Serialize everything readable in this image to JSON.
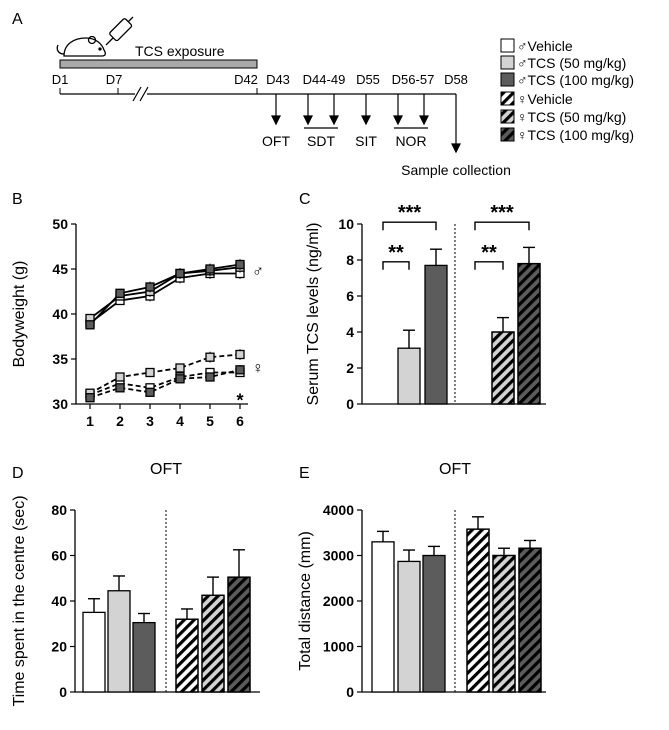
{
  "panel_labels": {
    "a": "A",
    "b": "B",
    "c": "C",
    "d": "D",
    "e": "E"
  },
  "timeline": {
    "exposure_label": "TCS exposure",
    "days": [
      "D1",
      "D7",
      "D42",
      "D43",
      "D44-49",
      "D55",
      "D56-57",
      "D58"
    ],
    "tests": [
      "OFT",
      "SDT",
      "SIT",
      "NOR"
    ],
    "sample": "Sample collection"
  },
  "legend": [
    {
      "label": "♂Vehicle",
      "style": "white"
    },
    {
      "label": "♂TCS (50 mg/kg)",
      "style": "light"
    },
    {
      "label": "♂TCS (100 mg/kg)",
      "style": "dark"
    },
    {
      "label": "♀Vehicle",
      "style": "white-hatch"
    },
    {
      "label": "♀TCS (50 mg/kg)",
      "style": "light-hatch"
    },
    {
      "label": "♀TCS (100 mg/kg)",
      "style": "dark-hatch"
    }
  ],
  "colors": {
    "white": "#ffffff",
    "light": "#d3d3d3",
    "dark": "#5c5c5c",
    "stroke": "#000000",
    "timeline_bar": "#a9a9a9"
  },
  "chart_data": [
    {
      "panel": "B",
      "type": "line",
      "ylabel": "Bodyweight (g)",
      "xlabel": "",
      "x": [
        1,
        2,
        3,
        4,
        5,
        6
      ],
      "ylim": [
        30,
        50
      ],
      "yticks": [
        30,
        35,
        40,
        45,
        50
      ],
      "series": [
        {
          "group": "male",
          "style": "white",
          "values": [
            39.0,
            41.5,
            42.0,
            44.0,
            44.5,
            44.5
          ],
          "err": [
            0.5,
            0.5,
            0.6,
            0.6,
            0.6,
            0.6
          ]
        },
        {
          "group": "male",
          "style": "light",
          "values": [
            39.5,
            42.0,
            42.5,
            44.5,
            44.8,
            45.2
          ],
          "err": [
            0.5,
            0.5,
            0.6,
            0.6,
            0.6,
            0.6
          ]
        },
        {
          "group": "male",
          "style": "dark",
          "values": [
            38.8,
            42.3,
            43.0,
            44.5,
            45.0,
            45.5
          ],
          "err": [
            0.5,
            0.5,
            0.6,
            0.6,
            0.6,
            0.6
          ]
        },
        {
          "group": "female",
          "style": "white",
          "values": [
            31.0,
            32.3,
            31.8,
            33.0,
            33.5,
            33.5
          ],
          "err": [
            0.4,
            0.4,
            0.4,
            0.5,
            0.5,
            0.5
          ]
        },
        {
          "group": "female",
          "style": "light",
          "values": [
            31.2,
            33.0,
            33.5,
            34.0,
            35.2,
            35.5
          ],
          "err": [
            0.4,
            0.4,
            0.4,
            0.5,
            0.6,
            0.6
          ]
        },
        {
          "group": "female",
          "style": "dark",
          "values": [
            30.7,
            31.8,
            31.3,
            32.8,
            33.0,
            33.8
          ],
          "err": [
            0.4,
            0.4,
            0.4,
            0.5,
            0.5,
            0.5
          ]
        }
      ],
      "annotations": [
        {
          "text": "♂",
          "x": 6,
          "y": 44.8
        },
        {
          "text": "♀",
          "x": 6,
          "y": 34.0
        },
        {
          "text": "*",
          "x": 6,
          "y": 31.3
        }
      ]
    },
    {
      "panel": "C",
      "type": "bar",
      "ylabel": "Serum TCS levels (ng/ml)",
      "xlabel": "",
      "ylim": [
        0,
        10
      ],
      "yticks": [
        0,
        2,
        4,
        6,
        8,
        10
      ],
      "categories": [
        "♂Vehicle",
        "♂TCS (50 mg/kg)",
        "♂TCS (100 mg/kg)",
        "♀Vehicle",
        "♀TCS (50 mg/kg)",
        "♀TCS (100 mg/kg)"
      ],
      "values": [
        0,
        3.1,
        7.7,
        0,
        4.0,
        7.8
      ],
      "err": [
        0,
        1.0,
        0.9,
        0,
        0.8,
        0.9
      ],
      "significance": [
        {
          "from": 0,
          "to": 1,
          "text": "**",
          "level": 7.9
        },
        {
          "from": 0,
          "to": 2,
          "text": "***",
          "level": 10.1
        },
        {
          "from": 3,
          "to": 4,
          "text": "**",
          "level": 7.9
        },
        {
          "from": 3,
          "to": 5,
          "text": "***",
          "level": 10.1
        }
      ]
    },
    {
      "panel": "D",
      "type": "bar",
      "title": "OFT",
      "ylabel": "Time spent in the centre (sec)",
      "xlabel": "",
      "ylim": [
        0,
        80
      ],
      "yticks": [
        0,
        20,
        40,
        60,
        80
      ],
      "categories": [
        "♂Vehicle",
        "♂TCS (50 mg/kg)",
        "♂TCS (100 mg/kg)",
        "♀Vehicle",
        "♀TCS (50 mg/kg)",
        "♀TCS (100 mg/kg)"
      ],
      "values": [
        35,
        44.5,
        30.5,
        32,
        42.5,
        50.5
      ],
      "err": [
        6,
        6.5,
        4,
        4.5,
        8,
        12
      ]
    },
    {
      "panel": "E",
      "type": "bar",
      "title": "OFT",
      "ylabel": "Total distance (mm)",
      "xlabel": "",
      "ylim": [
        0,
        4000
      ],
      "yticks": [
        0,
        1000,
        2000,
        3000,
        4000
      ],
      "categories": [
        "♂Vehicle",
        "♂TCS (50 mg/kg)",
        "♂TCS (100 mg/kg)",
        "♀Vehicle",
        "♀TCS (50 mg/kg)",
        "♀TCS (100 mg/kg)"
      ],
      "values": [
        3300,
        2870,
        3000,
        3580,
        3000,
        3160
      ],
      "err": [
        230,
        250,
        200,
        270,
        160,
        170
      ]
    }
  ]
}
